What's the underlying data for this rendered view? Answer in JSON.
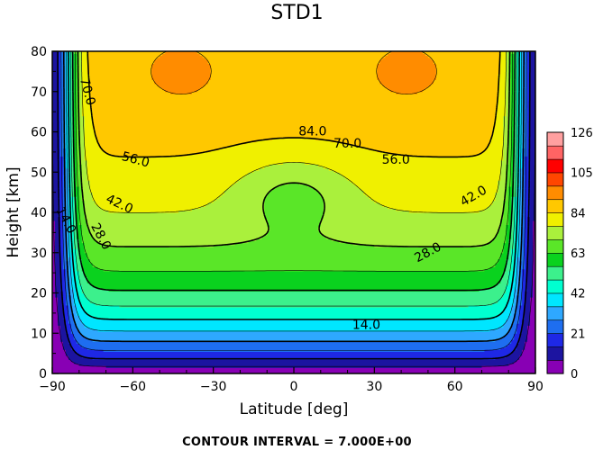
{
  "chart_data": {
    "type": "contour",
    "title": "STD1",
    "xlabel": "Latitude [deg]",
    "ylabel": "Height [km]",
    "xlim": [
      -90,
      90
    ],
    "ylim": [
      0,
      80
    ],
    "xticks": [
      "−90",
      "−60",
      "−30",
      "0",
      "30",
      "60",
      "90"
    ],
    "yticks": [
      "0",
      "10",
      "20",
      "30",
      "40",
      "50",
      "60",
      "70",
      "80"
    ],
    "contour_interval": 7.0,
    "footer": "CONTOUR INTERVAL = 7.000E+00",
    "colorbar_labels": [
      "0",
      "21",
      "42",
      "63",
      "84",
      "105",
      "126"
    ],
    "colorbar_colors": [
      "#8800b4",
      "#1c14a0",
      "#1e28e6",
      "#1e6ef0",
      "#2ea8ff",
      "#00e6ff",
      "#00ffd0",
      "#3cf08c",
      "#0ad21e",
      "#5ae628",
      "#aaf03c",
      "#f0f000",
      "#ffc800",
      "#ff8c00",
      "#ff4600",
      "#ff0000",
      "#ff6464",
      "#ffa0a0"
    ],
    "contour_labels": [
      "14.0",
      "28.0",
      "42.0",
      "56.0",
      "70.0",
      "84.0"
    ]
  }
}
